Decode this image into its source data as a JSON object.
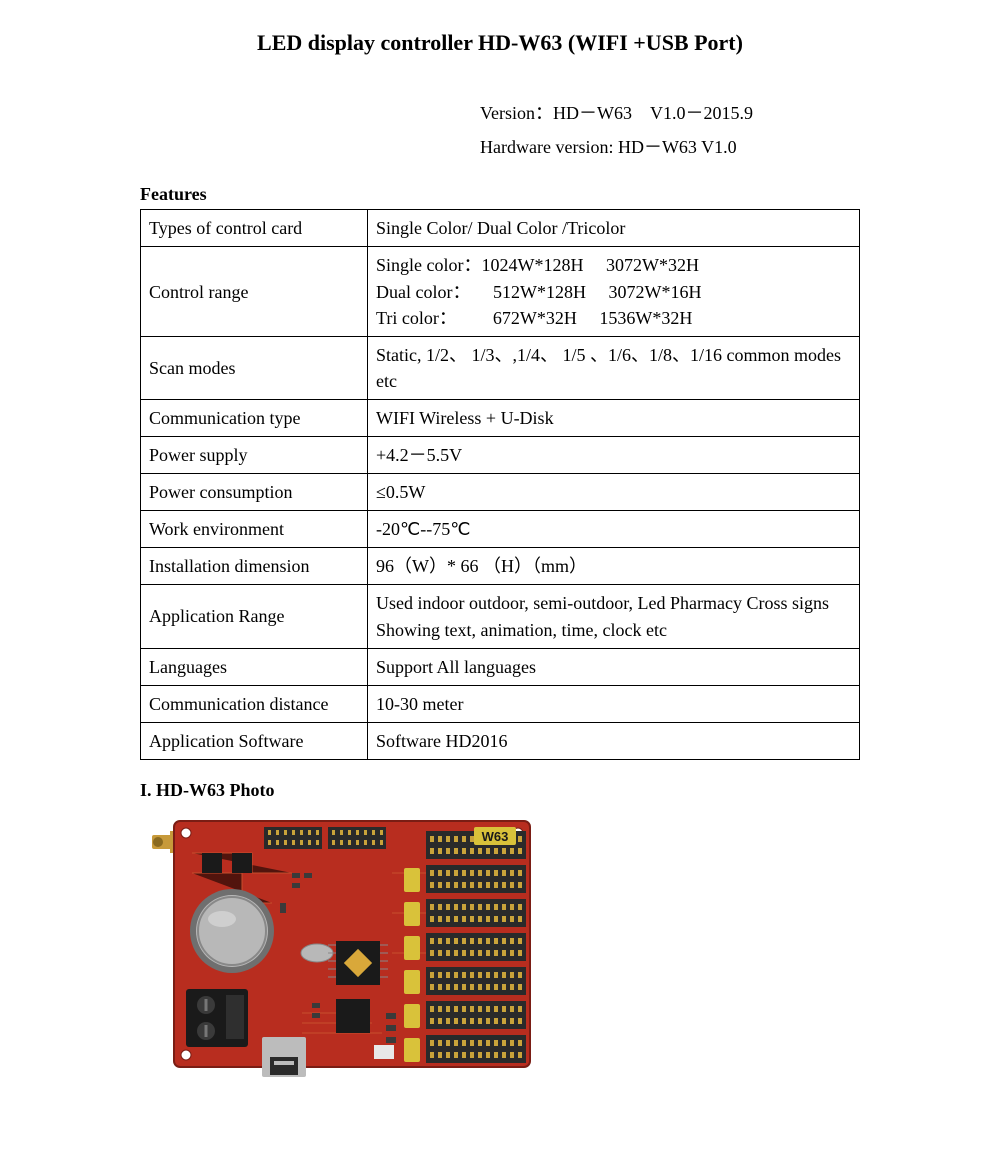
{
  "title": "LED display controller HD-W63 (WIFI +USB Port)",
  "version_line": "Version：HD－W63 V1.0－2015.9",
  "hardware_line": "Hardware version: HD－W63 V1.0",
  "features_heading": "Features",
  "rows": [
    {
      "label": "Types of control card",
      "value": "Single Color/ Dual Color /Tricolor"
    },
    {
      "label": "Control range",
      "value": "Single color：1024W*128H  3072W*32H\nDual color：  512W*128H  3072W*16H\nTri color：  672W*32H  1536W*32H"
    },
    {
      "label": "Scan modes",
      "value": "Static, 1/2、 1/3、,1/4、 1/5 、1/6、1/8、1/16 common modes etc"
    },
    {
      "label": "Communication type",
      "value": "WIFI Wireless + U-Disk"
    },
    {
      "label": "Power supply",
      "value": "+4.2－5.5V"
    },
    {
      "label": "Power consumption",
      "value": "≤0.5W"
    },
    {
      "label": "Work environment",
      "value": "-20℃--75℃"
    },
    {
      "label": "Installation dimension",
      "value": "96（W）* 66 （H）（mm）"
    },
    {
      "label": "Application Range",
      "value": "Used indoor outdoor, semi-outdoor, Led Pharmacy Cross signs Showing text, animation, time, clock etc"
    },
    {
      "label": "Languages",
      "value": "Support All languages"
    },
    {
      "label": "Communication distance",
      "value": "10-30 meter"
    },
    {
      "label": "Application Software",
      "value": "Software HD2016"
    }
  ],
  "photo_heading": "I. HD-W63 Photo",
  "pcb": {
    "board_color": "#b82d1f",
    "board_dark": "#7a1d14",
    "trace_color": "#d46a3a",
    "chip_color": "#1a1a1a",
    "chip_gold": "#d9a83a",
    "pin_header_color": "#2a2a2a",
    "pin_gold": "#c9a33a",
    "label_tape": "#d9c23a",
    "battery_outer": "#6f6f6f",
    "battery_inner": "#b8b8b8",
    "terminal_color": "#1a1a1a",
    "usb_metal": "#bcbcbc",
    "antenna_gold": "#c79a3a",
    "silk": "#e9b060",
    "crystal": "#b8b8b8",
    "model_label": "W63"
  }
}
